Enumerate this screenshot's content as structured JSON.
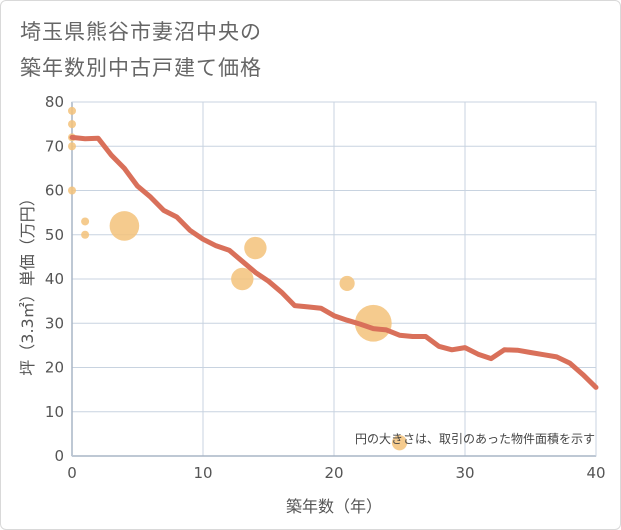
{
  "page": {
    "title_line1": "埼玉県熊谷市妻沼中央の",
    "title_line2": "築年数別中古戸建て価格"
  },
  "chart_data": {
    "type": "scatter",
    "title": "埼玉県熊谷市妻沼中央の築年数別中古戸建て価格",
    "xlabel": "築年数（年）",
    "ylabel": "坪（3.3㎡）単価（万円）",
    "xlim": [
      0,
      40
    ],
    "ylim": [
      0,
      80
    ],
    "x_ticks": [
      0,
      10,
      20,
      30,
      40
    ],
    "y_ticks": [
      0,
      10,
      20,
      30,
      40,
      50,
      60,
      70,
      80
    ],
    "grid": true,
    "note": "円の大きさは、取引のあった物件面積を示す",
    "colors": {
      "line": "#d9705a",
      "bubble": "#f3c27a",
      "grid": "#c8d3e0",
      "axis": "#6b7a8f"
    },
    "series": [
      {
        "name": "trend",
        "kind": "line",
        "x": [
          0,
          1,
          2,
          3,
          4,
          5,
          6,
          7,
          8,
          9,
          10,
          11,
          12,
          13,
          14,
          15,
          16,
          17,
          18,
          19,
          20,
          21,
          22,
          23,
          24,
          25,
          26,
          27,
          28,
          29,
          30,
          31,
          32,
          33,
          34,
          35,
          36,
          37,
          38,
          39,
          40
        ],
        "y": [
          72,
          71.7,
          71.8,
          68,
          65,
          61,
          58.5,
          55.5,
          54,
          51,
          49,
          47.5,
          46.5,
          44,
          41.5,
          39.5,
          37,
          34,
          33.7,
          33.4,
          31.7,
          30.7,
          29.8,
          28.8,
          28.5,
          27.3,
          27,
          27,
          24.8,
          24,
          24.5,
          23,
          22,
          24,
          23.9,
          23.4,
          22.9,
          22.4,
          21,
          18.4,
          15.5
        ]
      },
      {
        "name": "transactions",
        "kind": "bubble",
        "points": [
          {
            "x": 0,
            "y": 78,
            "size": 1
          },
          {
            "x": 0,
            "y": 75,
            "size": 1
          },
          {
            "x": 0,
            "y": 72,
            "size": 1
          },
          {
            "x": 0,
            "y": 70,
            "size": 1
          },
          {
            "x": 0,
            "y": 60,
            "size": 1
          },
          {
            "x": 1,
            "y": 53,
            "size": 1
          },
          {
            "x": 1,
            "y": 50,
            "size": 1
          },
          {
            "x": 4,
            "y": 52,
            "size": 4
          },
          {
            "x": 13,
            "y": 40,
            "size": 3
          },
          {
            "x": 14,
            "y": 47,
            "size": 3
          },
          {
            "x": 21,
            "y": 39,
            "size": 2
          },
          {
            "x": 23,
            "y": 30,
            "size": 5
          },
          {
            "x": 25,
            "y": 3,
            "size": 2
          }
        ]
      }
    ]
  }
}
